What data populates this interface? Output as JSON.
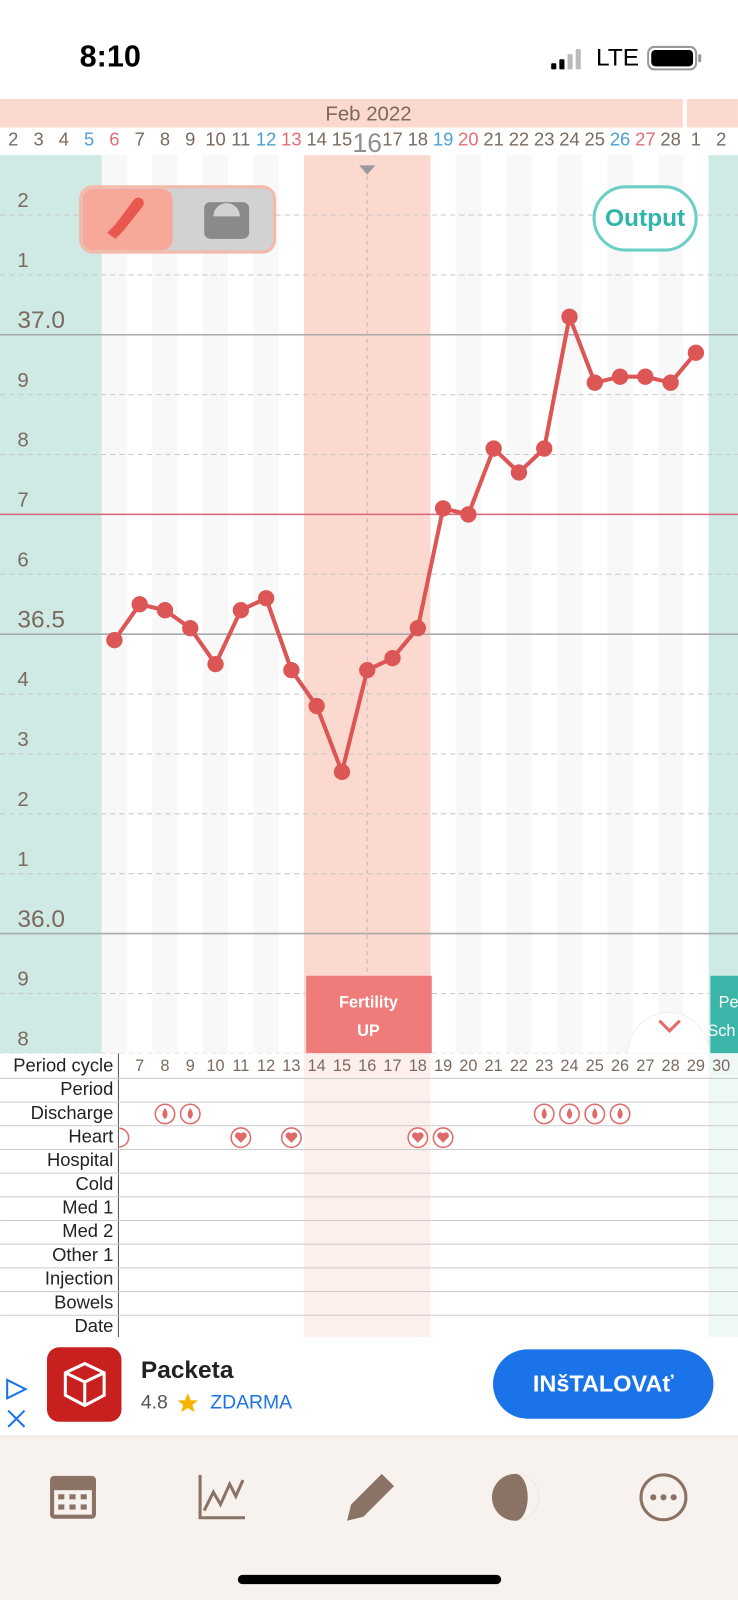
{
  "status_bar": {
    "time": "8:10",
    "network": "LTE"
  },
  "chart_data": {
    "type": "line",
    "month": "Feb 2022",
    "categories": [
      "2",
      "3",
      "4",
      "5",
      "6",
      "7",
      "8",
      "9",
      "10",
      "11",
      "12",
      "13",
      "14",
      "15",
      "16",
      "17",
      "18",
      "19",
      "20",
      "21",
      "22",
      "23",
      "24",
      "25",
      "26",
      "27",
      "28",
      "1",
      "2"
    ],
    "category_colors": [
      "#7a6a5e",
      "#7a6a5e",
      "#7a6a5e",
      "#4a9fd8",
      "#e46d78",
      "#7a6a5e",
      "#7a6a5e",
      "#7a6a5e",
      "#7a6a5e",
      "#7a6a5e",
      "#4a9fd8",
      "#e46d78",
      "#7a6a5e",
      "#7a6a5e",
      "#8f8f8f",
      "#7a6a5e",
      "#7a6a5e",
      "#4a9fd8",
      "#e46d78",
      "#7a6a5e",
      "#7a6a5e",
      "#7a6a5e",
      "#7a6a5e",
      "#7a6a5e",
      "#4a9fd8",
      "#e46d78",
      "#7a6a5e",
      "#7a6a5e",
      "#7a6a5e"
    ],
    "values": [
      null,
      null,
      null,
      null,
      36.49,
      36.55,
      36.54,
      36.51,
      36.45,
      36.54,
      36.56,
      36.44,
      36.38,
      36.27,
      36.44,
      36.46,
      36.51,
      36.71,
      36.7,
      36.81,
      36.77,
      36.81,
      37.03,
      36.92,
      36.93,
      36.93,
      36.92,
      36.97,
      null
    ],
    "color": "#dc5656",
    "ylim": [
      35.8,
      37.3
    ],
    "yticks": [
      {
        "value": 37.2,
        "label": "2"
      },
      {
        "value": 37.1,
        "label": "1"
      },
      {
        "value": 37.0,
        "label": "37.0"
      },
      {
        "value": 36.9,
        "label": "9"
      },
      {
        "value": 36.8,
        "label": "8"
      },
      {
        "value": 36.7,
        "label": "7"
      },
      {
        "value": 36.6,
        "label": "6"
      },
      36.5,
      {
        "value": 36.4,
        "label": "4"
      },
      {
        "value": 36.3,
        "label": "3"
      },
      {
        "value": 36.2,
        "label": "2"
      },
      {
        "value": 36.1,
        "label": "1"
      },
      {
        "value": 36.0,
        "label": "36.0"
      },
      {
        "value": 35.9,
        "label": "9"
      },
      {
        "value": 35.8,
        "label": "8"
      }
    ],
    "coverline": 36.7,
    "coverline_color": "#d9657a",
    "grid": true,
    "output_button": "Output",
    "fertility_label": [
      "Fertility",
      "UP"
    ],
    "next_label": [
      "Pe",
      "Sch"
    ]
  },
  "records": {
    "cycle_days": [
      "7",
      "8",
      "9",
      "10",
      "11",
      "12",
      "13",
      "14",
      "15",
      "16",
      "17",
      "18",
      "19",
      "20",
      "21",
      "22",
      "23",
      "24",
      "25",
      "26",
      "27",
      "28",
      "29",
      "30"
    ],
    "rows": [
      "Period cycle",
      "Period",
      "Discharge",
      "Heart",
      "Hospital",
      "Cold",
      "Med 1",
      "Med 2",
      "Other 1",
      "Injection",
      "Bowels",
      "Date"
    ]
  },
  "ad": {
    "name": "Packeta",
    "rating": "4.8",
    "price": "ZDARMA",
    "button": "INšTALOVAť"
  }
}
